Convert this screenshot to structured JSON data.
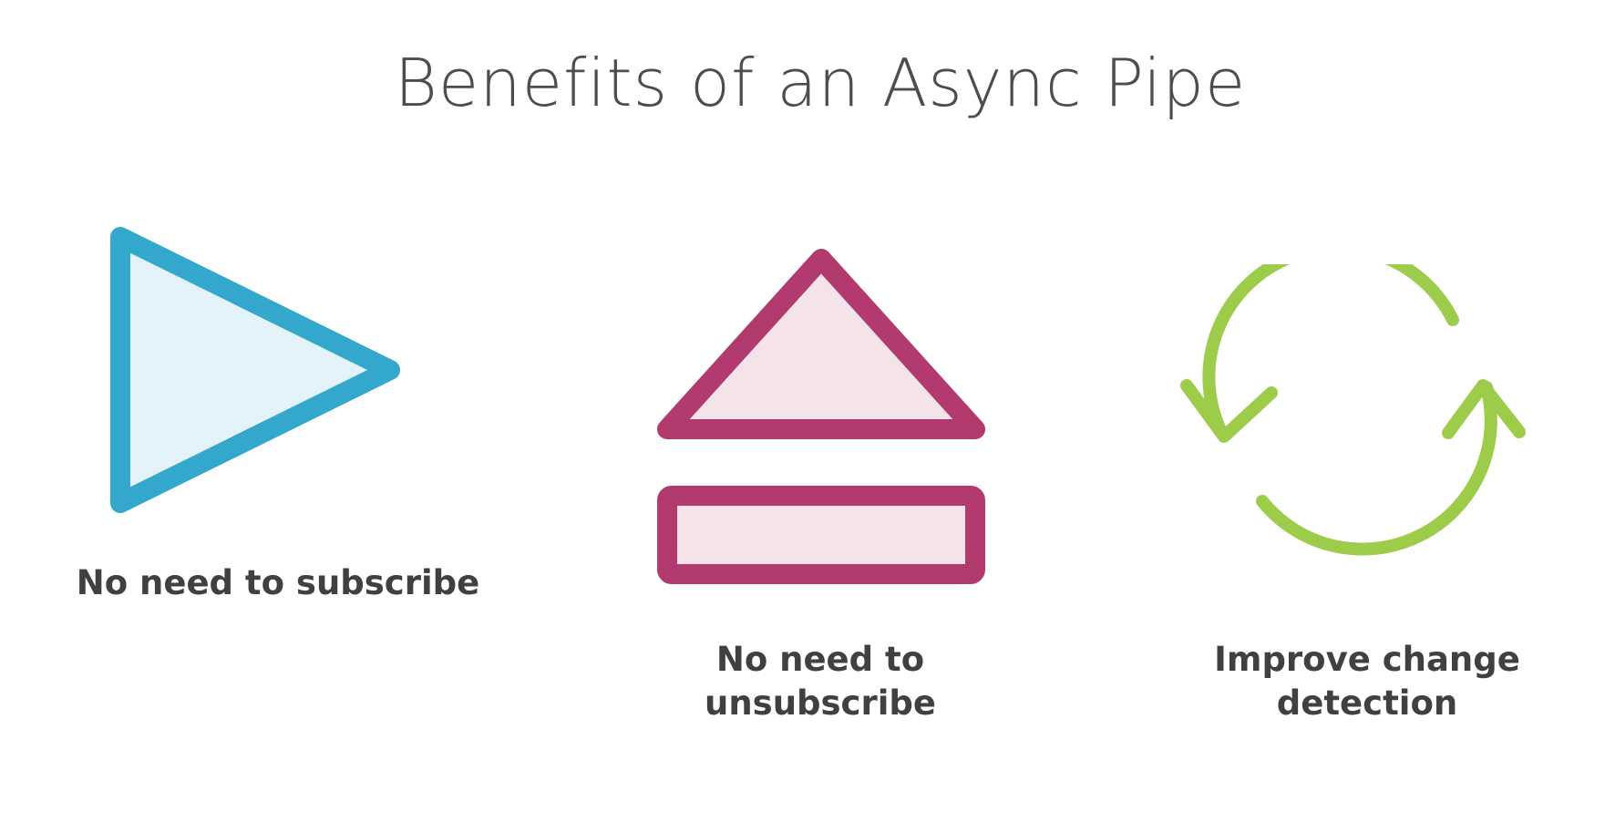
{
  "slide": {
    "title": "Benefits of an Async Pipe",
    "colors": {
      "background": "#ffffff",
      "title_text": "#4d4d4d",
      "caption_text": "#404040",
      "subscribe_accent": "#33a8cc",
      "subscribe_fill": "#e4f3f9",
      "unsubscribe_accent": "#b23a6e",
      "unsubscribe_fill": "#f4e4ea",
      "change_detection_accent": "#9ccc4a"
    },
    "benefits": [
      {
        "icon": "play-icon",
        "caption_lines": [
          "No need to subscribe"
        ]
      },
      {
        "icon": "eject-icon",
        "caption_lines": [
          "No need to",
          "unsubscribe"
        ]
      },
      {
        "icon": "refresh-icon",
        "caption_lines": [
          "Improve change",
          "detection"
        ]
      }
    ]
  }
}
